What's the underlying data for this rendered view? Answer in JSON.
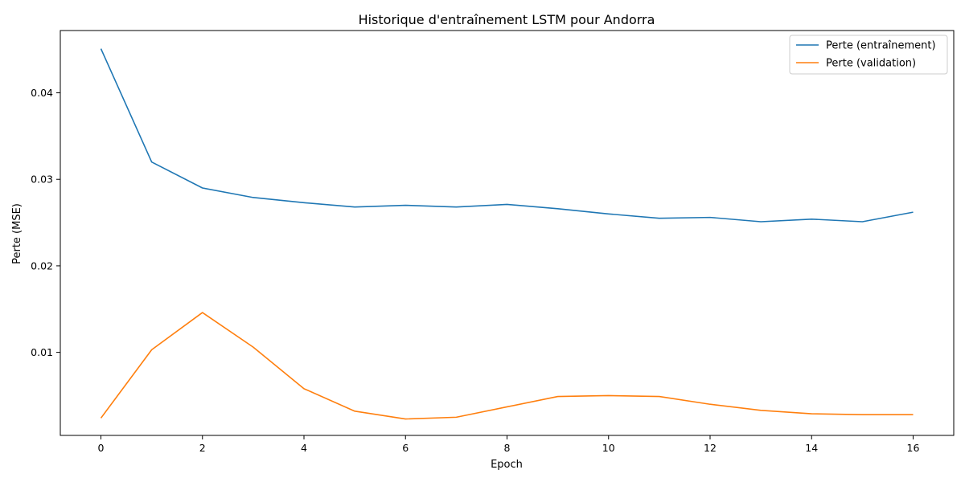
{
  "chart_data": {
    "type": "line",
    "title": "Historique d'entraînement LSTM pour Andorra",
    "xlabel": "Epoch",
    "ylabel": "Perte (MSE)",
    "xlim": [
      -0.8,
      16.8
    ],
    "ylim": [
      0.0004,
      0.0472
    ],
    "xticks": [
      0,
      2,
      4,
      6,
      8,
      10,
      12,
      14,
      16
    ],
    "xtick_labels": [
      "0",
      "2",
      "4",
      "6",
      "8",
      "10",
      "12",
      "14",
      "16"
    ],
    "yticks": [
      0.01,
      0.02,
      0.03,
      0.04
    ],
    "ytick_labels": [
      "0.01",
      "0.02",
      "0.03",
      "0.04"
    ],
    "grid": false,
    "legend_position": "top-right",
    "x": [
      0,
      1,
      2,
      3,
      4,
      5,
      6,
      7,
      8,
      9,
      10,
      11,
      12,
      13,
      14,
      15,
      16
    ],
    "series": [
      {
        "name": "Perte (entraînement)",
        "color": "#1f77b4",
        "values": [
          0.0451,
          0.032,
          0.029,
          0.0279,
          0.0273,
          0.0268,
          0.027,
          0.0268,
          0.0271,
          0.0266,
          0.026,
          0.0255,
          0.0256,
          0.0251,
          0.0254,
          0.0251,
          0.0262
        ]
      },
      {
        "name": "Perte (validation)",
        "color": "#ff7f0e",
        "values": [
          0.0024,
          0.0103,
          0.0146,
          0.0106,
          0.0058,
          0.0032,
          0.0023,
          0.0025,
          0.0037,
          0.0049,
          0.005,
          0.0049,
          0.004,
          0.0033,
          0.0029,
          0.0028,
          0.0028
        ]
      }
    ]
  }
}
